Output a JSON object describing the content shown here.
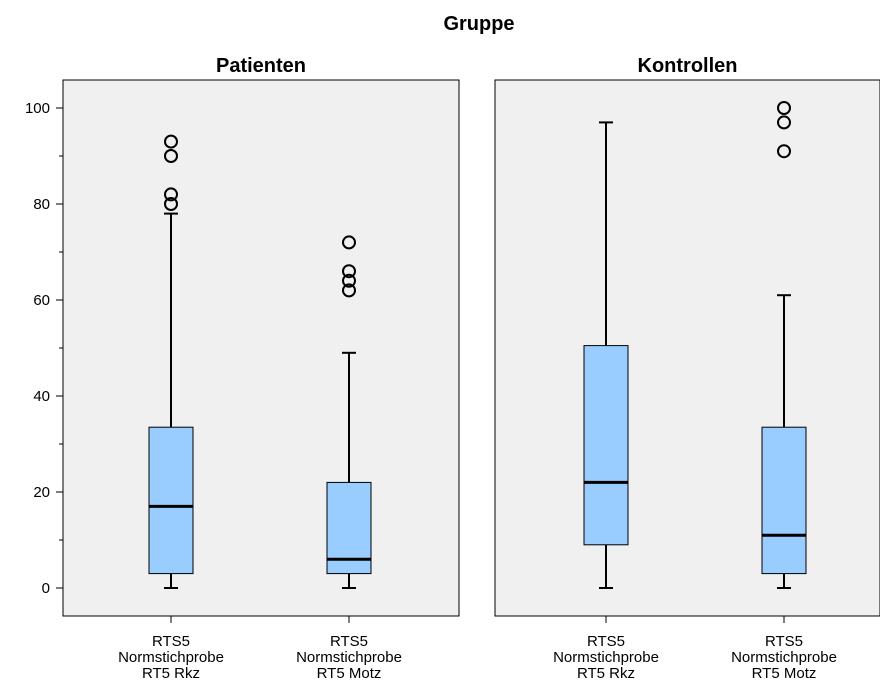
{
  "chart_data": {
    "type": "boxplot",
    "title": "Gruppe",
    "ylim": [
      0,
      100
    ],
    "yticks": [
      0,
      20,
      40,
      60,
      80,
      100
    ],
    "grid": false,
    "colors": {
      "box_fill": "#99CCFF",
      "panel_bg": "#F0F0F0",
      "stroke": "#000000"
    },
    "panels": [
      {
        "title": "Patienten",
        "boxes": [
          {
            "category": [
              "RTS5",
              "Normstichprobe",
              "RT5 Rkz"
            ],
            "whisker_low": 0,
            "q1": 3,
            "median": 17,
            "q3": 33.5,
            "whisker_high": 78,
            "outliers": [
              80,
              82,
              90,
              93
            ]
          },
          {
            "category": [
              "RTS5",
              "Normstichprobe",
              "RT5 Motz"
            ],
            "whisker_low": 0,
            "q1": 3,
            "median": 6,
            "q3": 22,
            "whisker_high": 49,
            "outliers": [
              62,
              64,
              66,
              72
            ]
          }
        ]
      },
      {
        "title": "Kontrollen",
        "boxes": [
          {
            "category": [
              "RTS5",
              "Normstichprobe",
              "RT5 Rkz"
            ],
            "whisker_low": 0,
            "q1": 9,
            "median": 22,
            "q3": 50.5,
            "whisker_high": 97,
            "outliers": []
          },
          {
            "category": [
              "RTS5",
              "Normstichprobe",
              "RT5 Motz"
            ],
            "whisker_low": 0,
            "q1": 3,
            "median": 11,
            "q3": 33.5,
            "whisker_high": 61,
            "outliers": [
              91,
              97,
              100
            ]
          }
        ]
      }
    ]
  }
}
